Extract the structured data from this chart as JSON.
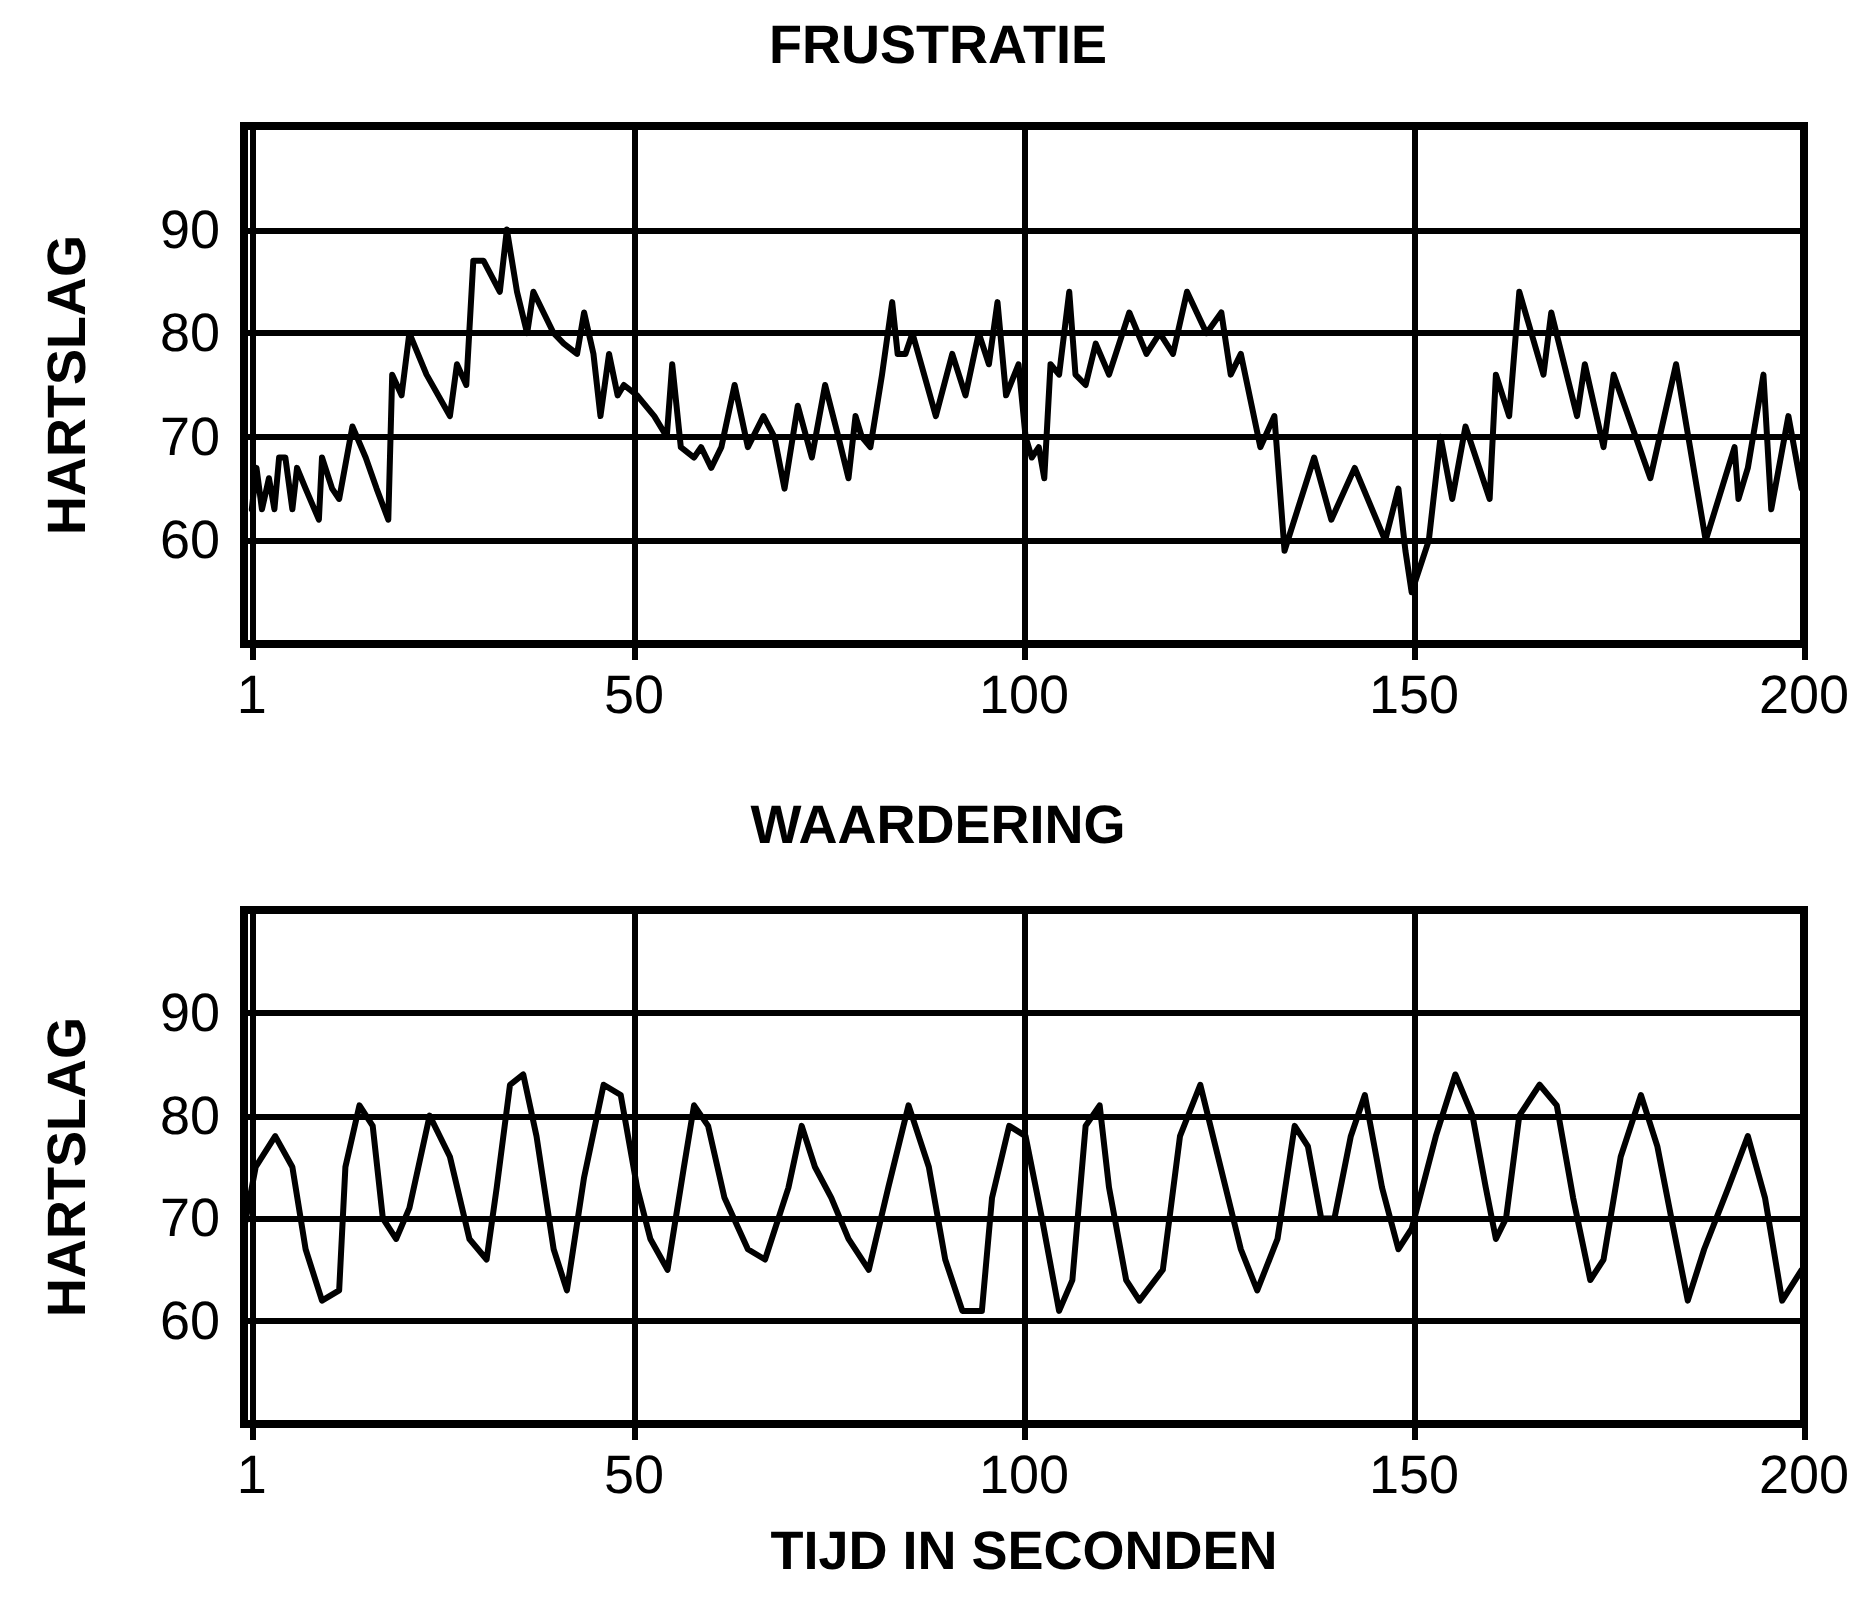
{
  "chart_data": [
    {
      "type": "line",
      "title": "FRUSTRATIE",
      "ylabel": "HARTSLAG",
      "xlim": [
        0,
        200
      ],
      "xticks": [
        1,
        50,
        100,
        150,
        200
      ],
      "ylim": [
        50,
        100
      ],
      "yticks": [
        60,
        70,
        80,
        90
      ],
      "grid": true,
      "marker": "none",
      "series": [
        {
          "color": "#000000",
          "x": [
            1.0,
            1.6,
            2.3,
            3.2,
            3.9,
            4.5,
            5.3,
            6.2,
            6.8,
            7.9,
            9.6,
            10.0,
            11.3,
            12.2,
            13.9,
            15.6,
            17.0,
            18.5,
            19.0,
            20.2,
            21.2,
            23.4,
            26.4,
            27.3,
            28.5,
            29.4,
            30.7,
            32.8,
            33.7,
            35.0,
            36.3,
            37.1,
            39.7,
            41.0,
            42.7,
            43.6,
            44.8,
            45.7,
            46.8,
            47.9,
            48.7,
            50.4,
            52.6,
            54.2,
            54.9,
            56.0,
            57.7,
            58.6,
            59.9,
            61.2,
            62.9,
            64.6,
            66.6,
            68.0,
            69.3,
            71.0,
            72.8,
            74.5,
            76.2,
            77.5,
            78.4,
            79.2,
            80.3,
            81.8,
            83.1,
            83.8,
            84.8,
            85.7,
            88.7,
            90.8,
            92.5,
            94.2,
            95.5,
            96.6,
            97.7,
            99.3,
            100.2,
            101.0,
            101.9,
            102.6,
            103.4,
            104.5,
            105.8,
            106.6,
            107.9,
            109.2,
            110.9,
            113.5,
            115.7,
            117.4,
            119.1,
            120.9,
            123.4,
            125.3,
            126.5,
            127.8,
            130.3,
            132.1,
            133.4,
            137.2,
            139.4,
            142.4,
            146.3,
            148.0,
            148.9,
            149.7,
            151.9,
            153.4,
            154.9,
            156.6,
            159.7,
            160.5,
            162.2,
            163.5,
            166.6,
            167.6,
            170.9,
            171.9,
            174.3,
            175.6,
            180.3,
            183.6,
            187.4,
            191.1,
            191.6,
            192.8,
            194.8,
            195.8,
            198.0,
            199.7
          ],
          "values": [
            63,
            67,
            63,
            66,
            63,
            68,
            68,
            63,
            67,
            65,
            62,
            68,
            65,
            64,
            71,
            68,
            65,
            62,
            76,
            74,
            80,
            76,
            72,
            77,
            75,
            87,
            87,
            84,
            90,
            84,
            80,
            84,
            80,
            79,
            78,
            82,
            78,
            72,
            78,
            74,
            75,
            74,
            72,
            70,
            77,
            69,
            68,
            69,
            67,
            69,
            75,
            69,
            72,
            70,
            65,
            73,
            68,
            75,
            70,
            66,
            72,
            70,
            69,
            76,
            83,
            78,
            78,
            80,
            72,
            78,
            74,
            80,
            77,
            83,
            74,
            77,
            70,
            68,
            69,
            66,
            77,
            76,
            84,
            76,
            75,
            79,
            76,
            82,
            78,
            80,
            78,
            84,
            80,
            82,
            76,
            78,
            69,
            72,
            59,
            68,
            62,
            67,
            60,
            65,
            59,
            55,
            60,
            70,
            64,
            71,
            64,
            76,
            72,
            84,
            76,
            82,
            72,
            77,
            69,
            76,
            66,
            77,
            60,
            69,
            64,
            67,
            76,
            63,
            72,
            65
          ]
        }
      ]
    },
    {
      "type": "line",
      "title": "WAARDERING",
      "ylabel": "HARTSLAG",
      "xlabel": "TIJD IN SECONDEN",
      "xlim": [
        0,
        200
      ],
      "xticks": [
        1,
        50,
        100,
        150,
        200
      ],
      "ylim": [
        50,
        100
      ],
      "yticks": [
        60,
        70,
        80,
        90
      ],
      "grid": true,
      "marker": "none",
      "series": [
        {
          "color": "#000000",
          "x": [
            0.0,
            1.5,
            4.0,
            6.2,
            7.9,
            10.0,
            12.2,
            13.0,
            14.8,
            16.5,
            17.8,
            19.5,
            21.2,
            23.8,
            26.4,
            28.9,
            31.1,
            32.4,
            34.1,
            35.8,
            37.5,
            39.7,
            41.4,
            43.6,
            46.1,
            48.3,
            50.4,
            52.1,
            54.3,
            56.4,
            57.7,
            59.5,
            61.6,
            64.6,
            66.8,
            69.8,
            71.5,
            73.2,
            75.3,
            77.5,
            80.1,
            82.6,
            85.2,
            87.8,
            89.9,
            92.1,
            94.6,
            95.9,
            98.1,
            100.2,
            102.3,
            104.5,
            106.2,
            107.9,
            109.7,
            110.9,
            113.1,
            114.8,
            117.8,
            120.0,
            122.6,
            125.2,
            127.8,
            129.9,
            132.5,
            134.7,
            136.4,
            138.1,
            139.8,
            141.9,
            143.7,
            145.9,
            148.0,
            149.7,
            152.8,
            155.3,
            157.5,
            159.2,
            160.5,
            161.8,
            163.5,
            166.1,
            168.3,
            170.4,
            172.6,
            174.3,
            176.5,
            179.1,
            181.2,
            183.0,
            185.1,
            187.2,
            190.3,
            192.8,
            195.0,
            197.2,
            199.7
          ],
          "values": [
            69,
            75,
            78,
            75,
            67,
            62,
            63,
            75,
            81,
            79,
            70,
            68,
            71,
            80,
            76,
            68,
            66,
            73,
            83,
            84,
            78,
            67,
            63,
            74,
            83,
            82,
            73,
            68,
            65,
            75,
            81,
            79,
            72,
            67,
            66,
            73,
            79,
            75,
            72,
            68,
            65,
            73,
            81,
            75,
            66,
            61,
            61,
            72,
            79,
            78,
            70,
            61,
            64,
            79,
            81,
            73,
            64,
            62,
            65,
            78,
            83,
            75,
            67,
            63,
            68,
            79,
            77,
            70,
            70,
            78,
            82,
            73,
            67,
            69,
            78,
            84,
            80,
            73,
            68,
            70,
            80,
            83,
            81,
            72,
            64,
            66,
            76,
            82,
            77,
            70,
            62,
            67,
            73,
            78,
            72,
            62,
            65
          ]
        }
      ]
    }
  ]
}
